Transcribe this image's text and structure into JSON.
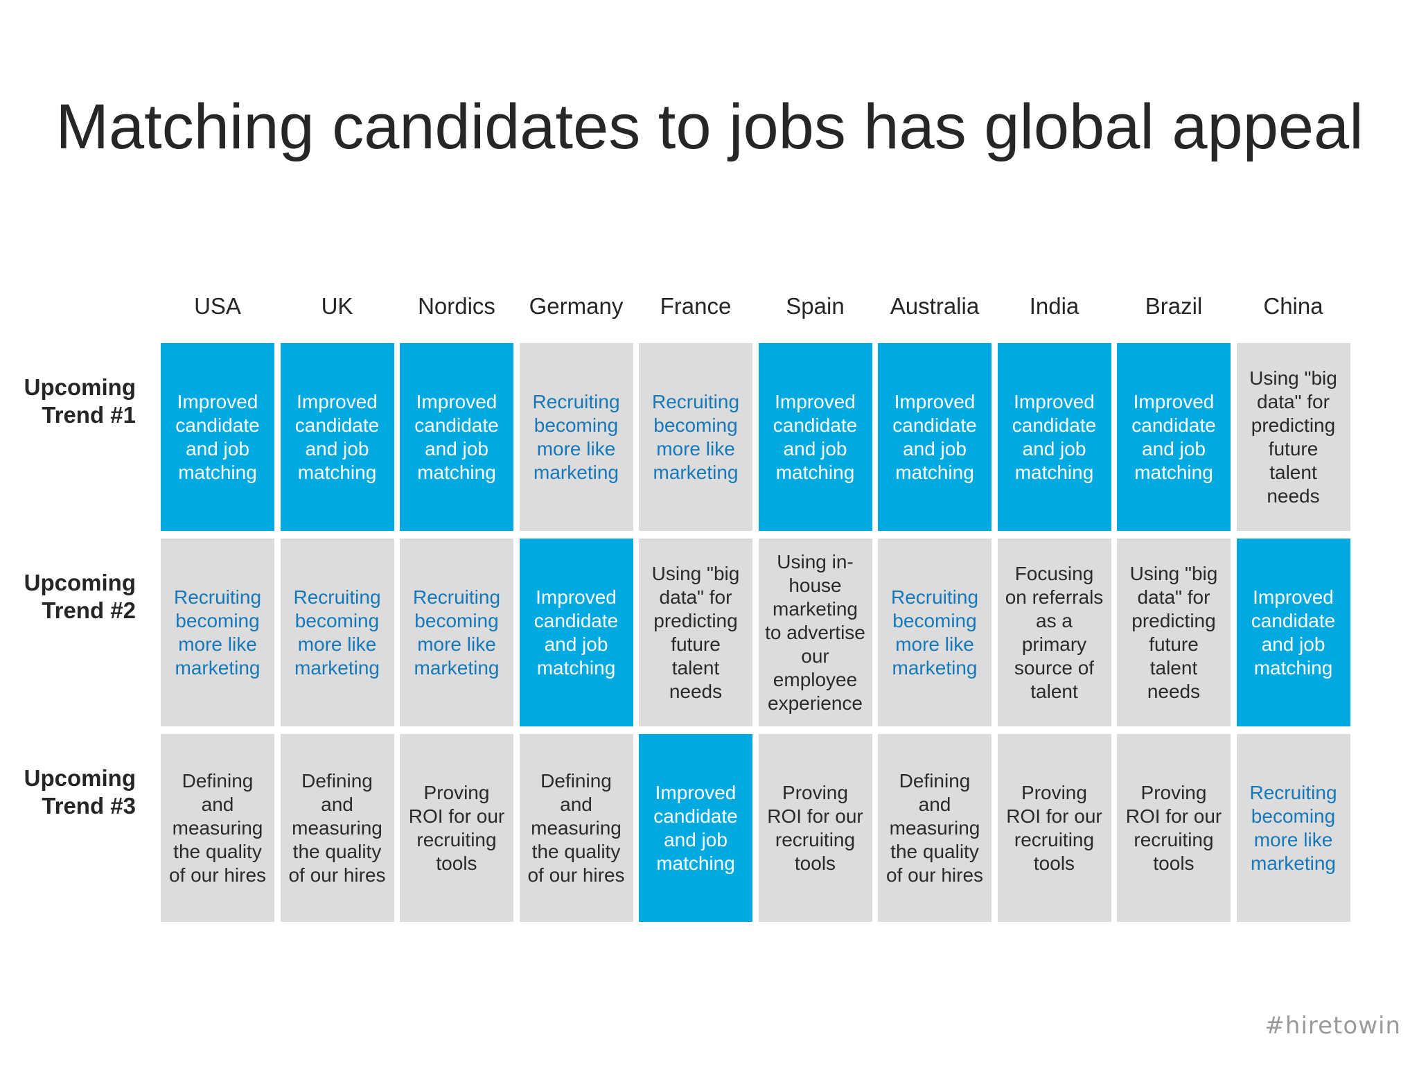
{
  "title": "Matching candidates to jobs has global appeal",
  "columns": [
    "USA",
    "UK",
    "Nordics",
    "Germany",
    "France",
    "Spain",
    "Australia",
    "India",
    "Brazil",
    "China"
  ],
  "colors": {
    "highlight_fill": "#00aae1",
    "neutral_fill": "#dcdcdd",
    "accent_text": "#1579b9",
    "plain_text": "#2a2a2a"
  },
  "rows": [
    {
      "label_line1": "Upcoming",
      "label_line2": "Trend #1",
      "cells": [
        {
          "text": "Improved\ncandidate\nand job\nmatching",
          "style": "highlight"
        },
        {
          "text": "Improved\ncandidate\nand job\nmatching",
          "style": "highlight"
        },
        {
          "text": "Improved\ncandidate\nand job\nmatching",
          "style": "highlight"
        },
        {
          "text": "Recruiting\nbecoming\nmore like\nmarketing",
          "style": "accent"
        },
        {
          "text": "Recruiting\nbecoming\nmore like\nmarketing",
          "style": "accent"
        },
        {
          "text": "Improved\ncandidate\nand job\nmatching",
          "style": "highlight"
        },
        {
          "text": "Improved\ncandidate\nand job\nmatching",
          "style": "highlight"
        },
        {
          "text": "Improved\ncandidate\nand job\nmatching",
          "style": "highlight"
        },
        {
          "text": "Improved\ncandidate\nand job\nmatching",
          "style": "highlight"
        },
        {
          "text": "Using \"big\ndata\" for\npredicting\nfuture\ntalent\nneeds",
          "style": "plain"
        }
      ]
    },
    {
      "label_line1": "Upcoming",
      "label_line2": "Trend #2",
      "cells": [
        {
          "text": "Recruiting\nbecoming\nmore like\nmarketing",
          "style": "accent"
        },
        {
          "text": "Recruiting\nbecoming\nmore like\nmarketing",
          "style": "accent"
        },
        {
          "text": "Recruiting\nbecoming\nmore like\nmarketing",
          "style": "accent"
        },
        {
          "text": "Improved\ncandidate\nand job\nmatching",
          "style": "highlight"
        },
        {
          "text": "Using \"big\ndata\" for\npredicting\nfuture\ntalent\nneeds",
          "style": "plain"
        },
        {
          "text": "Using in-\nhouse\nmarketing\nto advertise\nour\nemployee\nexperience",
          "style": "plain"
        },
        {
          "text": "Recruiting\nbecoming\nmore like\nmarketing",
          "style": "accent"
        },
        {
          "text": "Focusing\non referrals\nas a\nprimary\nsource of\ntalent",
          "style": "plain"
        },
        {
          "text": "Using \"big\ndata\" for\npredicting\nfuture\ntalent\nneeds",
          "style": "plain"
        },
        {
          "text": "Improved\ncandidate\nand job\nmatching",
          "style": "highlight"
        }
      ]
    },
    {
      "label_line1": "Upcoming",
      "label_line2": "Trend #3",
      "cells": [
        {
          "text": "Defining\nand\nmeasuring\nthe quality\nof our hires",
          "style": "plain"
        },
        {
          "text": "Defining\nand\nmeasuring\nthe quality\nof our hires",
          "style": "plain"
        },
        {
          "text": "Proving\nROI for our\nrecruiting\ntools",
          "style": "plain"
        },
        {
          "text": "Defining\nand\nmeasuring\nthe quality\nof our hires",
          "style": "plain"
        },
        {
          "text": "Improved\ncandidate\nand job\nmatching",
          "style": "highlight"
        },
        {
          "text": "Proving\nROI for our\nrecruiting\ntools",
          "style": "plain"
        },
        {
          "text": "Defining\nand\nmeasuring\nthe quality\nof our hires",
          "style": "plain"
        },
        {
          "text": "Proving\nROI for our\nrecruiting\ntools",
          "style": "plain"
        },
        {
          "text": "Proving\nROI for our\nrecruiting\ntools",
          "style": "plain"
        },
        {
          "text": "Recruiting\nbecoming\nmore like\nmarketing",
          "style": "accent"
        }
      ]
    }
  ],
  "footer_tag": "#hiretowin"
}
